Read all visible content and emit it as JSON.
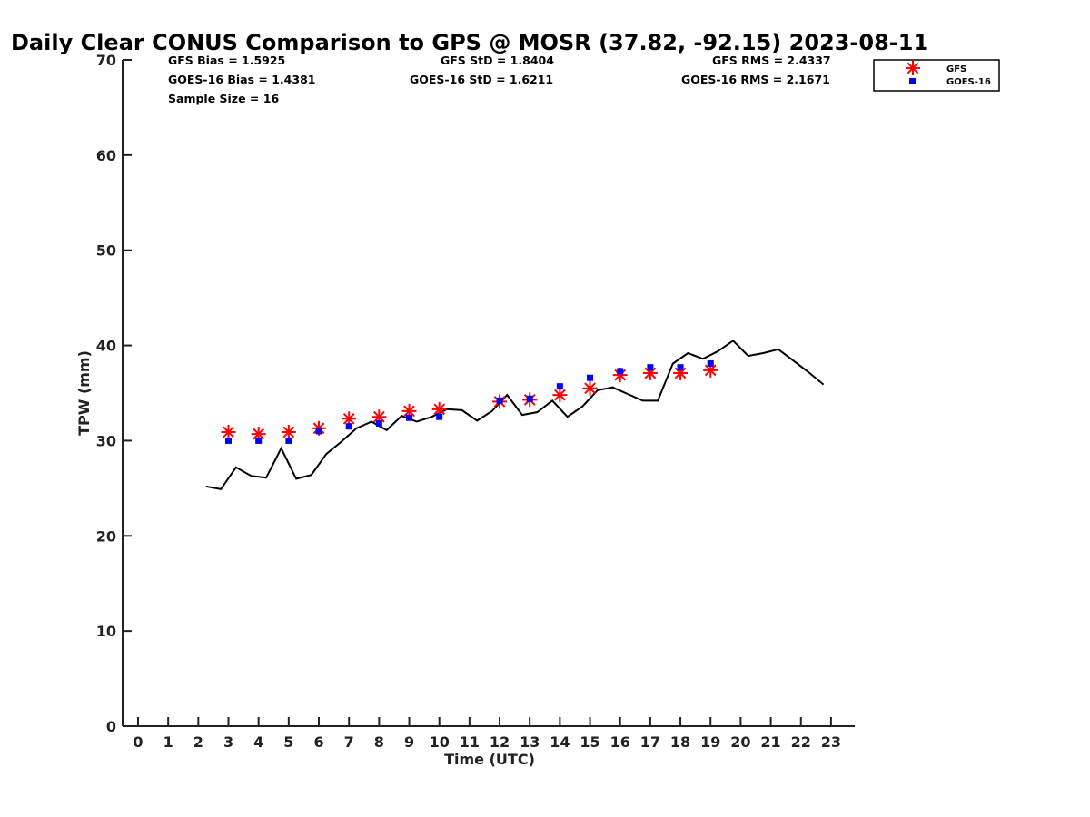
{
  "chart_data": {
    "type": "line",
    "title": "Daily Clear CONUS Comparison to GPS @ MOSR (37.82, -92.15) 2023-08-11",
    "xlabel": "Time (UTC)",
    "ylabel": "TPW (mm)",
    "xlim": [
      -0.5,
      23.7
    ],
    "ylim": [
      0,
      70
    ],
    "xticks": [
      "0",
      "1",
      "2",
      "3",
      "4",
      "5",
      "6",
      "7",
      "8",
      "9",
      "10",
      "11",
      "12",
      "13",
      "14",
      "15",
      "16",
      "17",
      "18",
      "19",
      "20",
      "21",
      "22",
      "23"
    ],
    "yticks": [
      "0",
      "10",
      "20",
      "30",
      "40",
      "50",
      "60",
      "70"
    ],
    "grid": false,
    "legend_position": "top-right",
    "stats": {
      "gfs_bias": "GFS Bias = 1.5925",
      "goes_bias": "GOES-16 Bias = 1.4381",
      "sample_size": "Sample Size = 16",
      "gfs_std": "GFS StD = 1.8404",
      "goes_std": "GOES-16 StD = 1.6211",
      "gfs_rms": "GFS RMS = 2.4337",
      "goes_rms": "GOES-16 RMS = 2.1671"
    },
    "series": [
      {
        "name": "GPS",
        "style": "line",
        "color": "#000000",
        "x": [
          2.25,
          2.75,
          3.25,
          3.75,
          4.25,
          4.75,
          5.25,
          5.75,
          6.25,
          6.75,
          7.25,
          7.75,
          8.25,
          8.75,
          9.25,
          9.75,
          10.25,
          10.75,
          11.25,
          11.75,
          12.25,
          12.75,
          13.25,
          13.75,
          14.25,
          14.75,
          15.25,
          15.75,
          16.25,
          16.75,
          17.25,
          17.75,
          18.25,
          18.75,
          19.25,
          19.75,
          20.25,
          20.75,
          21.25,
          21.75,
          22.25,
          22.75
        ],
        "y": [
          25.2,
          24.9,
          27.2,
          26.3,
          26.1,
          29.2,
          26.0,
          26.4,
          28.6,
          29.9,
          31.3,
          32.0,
          31.1,
          32.6,
          32.0,
          32.5,
          33.3,
          33.2,
          32.1,
          33.1,
          34.8,
          32.7,
          33.0,
          34.2,
          32.5,
          33.6,
          35.3,
          35.6,
          34.9,
          34.2,
          34.2,
          38.1,
          39.2,
          38.6,
          39.4,
          40.5,
          38.9,
          39.2,
          39.6,
          38.4,
          37.2,
          35.9
        ]
      },
      {
        "name": "GFS",
        "style": "asterisk",
        "color": "#ff0000",
        "x": [
          3,
          4,
          5,
          6,
          7,
          8,
          9,
          10,
          12,
          13,
          14,
          15,
          16,
          17,
          18,
          19
        ],
        "y": [
          30.9,
          30.7,
          30.9,
          31.3,
          32.3,
          32.5,
          33.1,
          33.3,
          34.1,
          34.3,
          34.8,
          35.5,
          36.9,
          37.1,
          37.1,
          37.4
        ]
      },
      {
        "name": "GOES-16",
        "style": "square",
        "color": "#0000ff",
        "x": [
          3,
          4,
          5,
          6,
          7,
          8,
          9,
          10,
          12,
          13,
          14,
          15,
          16,
          17,
          18,
          19
        ],
        "y": [
          30.0,
          30.0,
          30.0,
          31.0,
          31.5,
          31.8,
          32.4,
          32.5,
          34.2,
          34.4,
          35.7,
          36.6,
          37.3,
          37.7,
          37.7,
          38.1
        ]
      }
    ]
  }
}
